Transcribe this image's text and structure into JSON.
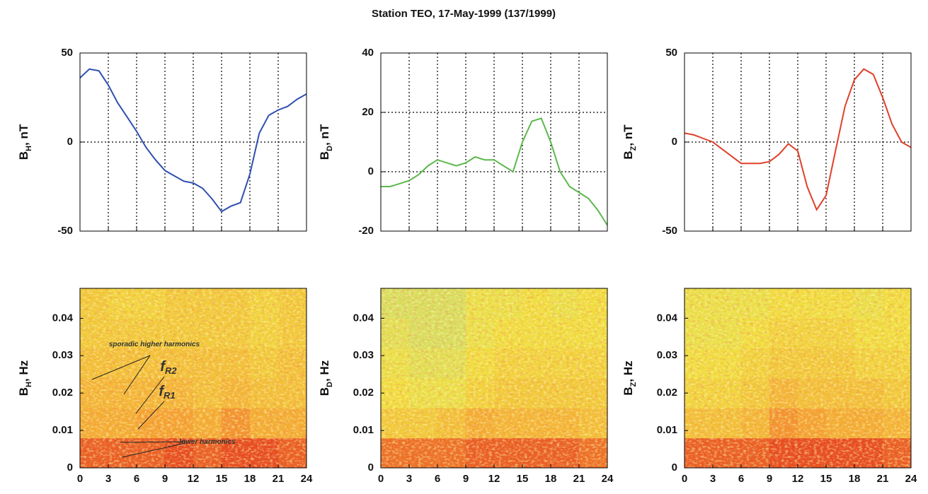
{
  "title": "Station TEO, 17-May-1999 (137/1999)",
  "chart_data": [
    {
      "type": "line",
      "ylabel": {
        "text": "B",
        "sub": "H",
        "unit": ", nT"
      },
      "x": [
        0,
        1,
        2,
        3,
        4,
        5,
        6,
        7,
        8,
        9,
        10,
        11,
        12,
        13,
        14,
        15,
        16,
        17,
        18,
        19,
        20,
        21,
        22,
        23,
        24
      ],
      "series": [
        {
          "color": "#3050b0",
          "values": [
            36,
            41,
            40,
            32,
            22,
            14,
            6,
            -3,
            -10,
            -16,
            -19,
            -22,
            -23,
            -26,
            -32,
            -39,
            -36,
            -34,
            -18,
            5,
            15,
            18,
            20,
            24,
            27
          ]
        }
      ],
      "xlim": [
        0,
        24
      ],
      "xticks": [
        0,
        3,
        6,
        9,
        12,
        15,
        18,
        21,
        24
      ],
      "xtick_labels": false,
      "ylim": [
        -50,
        50
      ],
      "yticks": [
        -50,
        0,
        50
      ],
      "grid": true
    },
    {
      "type": "line",
      "ylabel": {
        "text": "B",
        "sub": "D",
        "unit": ", nT"
      },
      "x": [
        0,
        1,
        2,
        3,
        4,
        5,
        6,
        7,
        8,
        9,
        10,
        11,
        12,
        13,
        14,
        15,
        16,
        17,
        18,
        19,
        20,
        21,
        22,
        23,
        24
      ],
      "series": [
        {
          "color": "#5cb84c",
          "values": [
            -5,
            -5,
            -4,
            -3,
            -1,
            2,
            4,
            3,
            2,
            3,
            5,
            4,
            4,
            2,
            0,
            10,
            17,
            18,
            10,
            0,
            -5,
            -7,
            -9,
            -13,
            -18
          ]
        }
      ],
      "xlim": [
        0,
        24
      ],
      "xticks": [
        0,
        3,
        6,
        9,
        12,
        15,
        18,
        21,
        24
      ],
      "xtick_labels": false,
      "ylim": [
        -20,
        40
      ],
      "yticks": [
        -20,
        0,
        20,
        40
      ],
      "grid": true
    },
    {
      "type": "line",
      "ylabel": {
        "text": "B",
        "sub": "Z",
        "unit": ", nT"
      },
      "x": [
        0,
        1,
        2,
        3,
        4,
        5,
        6,
        7,
        8,
        9,
        10,
        11,
        12,
        13,
        14,
        15,
        16,
        17,
        18,
        19,
        20,
        21,
        22,
        23,
        24
      ],
      "series": [
        {
          "color": "#e0402a",
          "values": [
            5,
            4,
            2,
            0,
            -4,
            -8,
            -12,
            -12,
            -12,
            -11,
            -7,
            -1,
            -5,
            -25,
            -38,
            -30,
            -5,
            20,
            35,
            41,
            38,
            25,
            10,
            0,
            -3
          ]
        }
      ],
      "xlim": [
        0,
        24
      ],
      "xticks": [
        0,
        3,
        6,
        9,
        12,
        15,
        18,
        21,
        24
      ],
      "xtick_labels": false,
      "ylim": [
        -50,
        50
      ],
      "yticks": [
        -50,
        0,
        50
      ],
      "grid": true
    },
    {
      "type": "heatmap",
      "ylabel": {
        "text": "B",
        "sub": "H",
        "unit": ", Hz"
      },
      "x_bins": [
        0,
        3,
        6,
        9,
        12,
        15,
        18,
        21,
        24
      ],
      "y_bins": [
        0,
        0.008,
        0.016,
        0.024,
        0.032,
        0.04,
        0.048
      ],
      "z": [
        [
          0.85,
          0.85,
          0.85,
          0.9,
          0.85,
          0.9,
          0.9,
          0.85
        ],
        [
          0.6,
          0.6,
          0.65,
          0.65,
          0.6,
          0.7,
          0.6,
          0.6
        ],
        [
          0.55,
          0.55,
          0.55,
          0.55,
          0.5,
          0.55,
          0.5,
          0.5
        ],
        [
          0.5,
          0.5,
          0.5,
          0.5,
          0.5,
          0.5,
          0.45,
          0.5
        ],
        [
          0.45,
          0.45,
          0.45,
          0.45,
          0.45,
          0.45,
          0.4,
          0.45
        ],
        [
          0.45,
          0.4,
          0.4,
          0.45,
          0.45,
          0.45,
          0.4,
          0.45
        ]
      ],
      "colormap": [
        "#b4dc8c",
        "#f0e040",
        "#f4a030",
        "#e02818"
      ],
      "xlim": [
        0,
        24
      ],
      "xticks": [
        0,
        3,
        6,
        9,
        12,
        15,
        18,
        21,
        24
      ],
      "xtick_labels": true,
      "ylim": [
        0,
        0.048
      ],
      "yticks": [
        0,
        0.01,
        0.02,
        0.03,
        0.04
      ],
      "annotations": [
        {
          "text": "sporadic higher harmonics"
        },
        {
          "text": "f",
          "sub": "R2"
        },
        {
          "text": "f",
          "sub": "R1"
        },
        {
          "text": "lower harmonics"
        }
      ]
    },
    {
      "type": "heatmap",
      "ylabel": {
        "text": "B",
        "sub": "D",
        "unit": ", Hz"
      },
      "x_bins": [
        0,
        3,
        6,
        9,
        12,
        15,
        18,
        21,
        24
      ],
      "y_bins": [
        0,
        0.008,
        0.016,
        0.024,
        0.032,
        0.04,
        0.048
      ],
      "z": [
        [
          0.8,
          0.8,
          0.8,
          0.85,
          0.85,
          0.85,
          0.85,
          0.8
        ],
        [
          0.45,
          0.45,
          0.5,
          0.6,
          0.55,
          0.55,
          0.55,
          0.5
        ],
        [
          0.35,
          0.3,
          0.3,
          0.4,
          0.45,
          0.45,
          0.45,
          0.45
        ],
        [
          0.3,
          0.25,
          0.25,
          0.35,
          0.4,
          0.4,
          0.4,
          0.4
        ],
        [
          0.25,
          0.2,
          0.2,
          0.3,
          0.35,
          0.35,
          0.35,
          0.35
        ],
        [
          0.2,
          0.2,
          0.2,
          0.3,
          0.3,
          0.35,
          0.3,
          0.35
        ]
      ],
      "colormap": [
        "#b4dc8c",
        "#f0e040",
        "#f4a030",
        "#e02818"
      ],
      "xlim": [
        0,
        24
      ],
      "xticks": [
        0,
        3,
        6,
        9,
        12,
        15,
        18,
        21,
        24
      ],
      "xtick_labels": true,
      "ylim": [
        0,
        0.048
      ],
      "yticks": [
        0,
        0.01,
        0.02,
        0.03,
        0.04
      ]
    },
    {
      "type": "heatmap",
      "ylabel": {
        "text": "B",
        "sub": "Z",
        "unit": ", Hz"
      },
      "x_bins": [
        0,
        3,
        6,
        9,
        12,
        15,
        18,
        21,
        24
      ],
      "y_bins": [
        0,
        0.008,
        0.016,
        0.024,
        0.032,
        0.04,
        0.048
      ],
      "z": [
        [
          0.85,
          0.85,
          0.85,
          0.9,
          0.9,
          0.9,
          0.9,
          0.85
        ],
        [
          0.5,
          0.5,
          0.55,
          0.7,
          0.65,
          0.6,
          0.6,
          0.55
        ],
        [
          0.4,
          0.4,
          0.45,
          0.55,
          0.5,
          0.5,
          0.5,
          0.45
        ],
        [
          0.35,
          0.35,
          0.4,
          0.45,
          0.45,
          0.45,
          0.4,
          0.4
        ],
        [
          0.3,
          0.3,
          0.35,
          0.4,
          0.4,
          0.4,
          0.35,
          0.35
        ],
        [
          0.3,
          0.3,
          0.3,
          0.35,
          0.35,
          0.35,
          0.3,
          0.35
        ]
      ],
      "colormap": [
        "#b4dc8c",
        "#f0e040",
        "#f4a030",
        "#e02818"
      ],
      "xlim": [
        0,
        24
      ],
      "xticks": [
        0,
        3,
        6,
        9,
        12,
        15,
        18,
        21,
        24
      ],
      "xtick_labels": true,
      "ylim": [
        0,
        0.048
      ],
      "yticks": [
        0,
        0.01,
        0.02,
        0.03,
        0.04
      ]
    }
  ]
}
